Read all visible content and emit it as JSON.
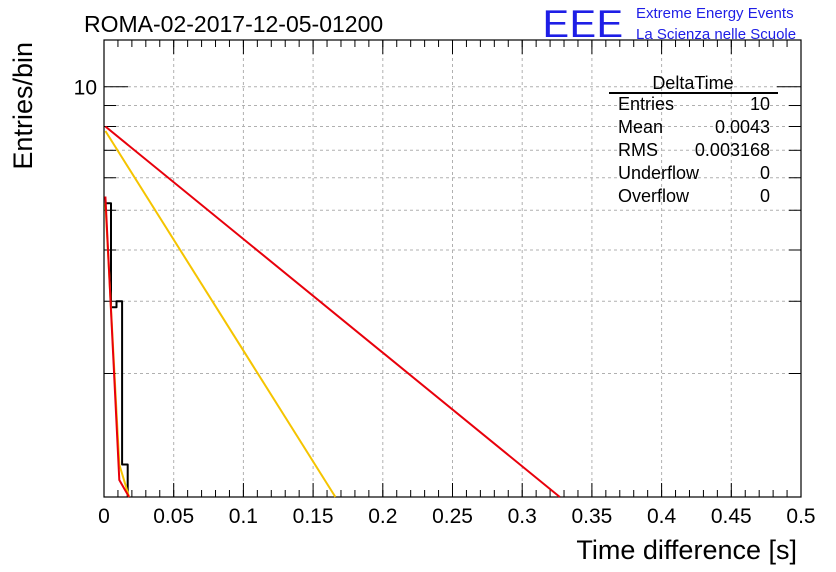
{
  "header": {
    "run_title": "ROMA-02-2017-12-05-01200",
    "logo_text": "EEE",
    "logo_line1": "Extreme Energy Events",
    "logo_line2": "La Scienza nelle Scuole"
  },
  "stats": {
    "title": "DeltaTime",
    "rows": [
      {
        "label": "Entries",
        "value": "10"
      },
      {
        "label": "Mean",
        "value": "0.0043"
      },
      {
        "label": "RMS",
        "value": "0.003168"
      },
      {
        "label": "Underflow",
        "value": "0"
      },
      {
        "label": "Overflow",
        "value": "0"
      }
    ]
  },
  "colors": {
    "black_series": "#000000",
    "yellow_series": "#f5c400",
    "red_series": "#e8000b",
    "logo": "#1e1ee6",
    "grid": "#b0b0b0"
  },
  "chart_data": {
    "type": "line",
    "title": "ROMA-02-2017-12-05-01200",
    "xlabel": "Time difference [s]",
    "ylabel": "Entries/bin",
    "xlim": [
      0,
      0.5
    ],
    "ylim": [
      1,
      13
    ],
    "y_scale": "log",
    "grid": true,
    "x_ticks": [
      0,
      0.05,
      0.1,
      0.15,
      0.2,
      0.25,
      0.3,
      0.35,
      0.4,
      0.45,
      0.5
    ],
    "x_tick_labels": [
      "0",
      "0.05",
      "0.1",
      "0.15",
      "0.2",
      "0.25",
      "0.3",
      "0.35",
      "0.4",
      "0.45",
      "0.5"
    ],
    "y_ticks": [
      10
    ],
    "y_tick_labels": [
      "10"
    ],
    "series": [
      {
        "color": "black",
        "points": [
          [
            0.001,
            5.2
          ],
          [
            0.005,
            5.2
          ],
          [
            0.005,
            2.9
          ],
          [
            0.009,
            2.9
          ],
          [
            0.009,
            3.0
          ],
          [
            0.013,
            3.0
          ],
          [
            0.013,
            1.2
          ],
          [
            0.017,
            1.2
          ],
          [
            0.017,
            1.0
          ]
        ]
      },
      {
        "color": "yellow",
        "points": [
          [
            0.001,
            5.2
          ],
          [
            0.011,
            1.2
          ],
          [
            0.018,
            1.0
          ]
        ]
      },
      {
        "color": "red",
        "points": [
          [
            0.001,
            5.4
          ],
          [
            0.011,
            1.1
          ],
          [
            0.018,
            1.0
          ]
        ]
      },
      {
        "color": "yellow",
        "points": [
          [
            0.001,
            7.8
          ],
          [
            0.166,
            1.0
          ]
        ]
      },
      {
        "color": "red",
        "points": [
          [
            0.001,
            8.0
          ],
          [
            0.327,
            1.0
          ]
        ]
      }
    ]
  }
}
